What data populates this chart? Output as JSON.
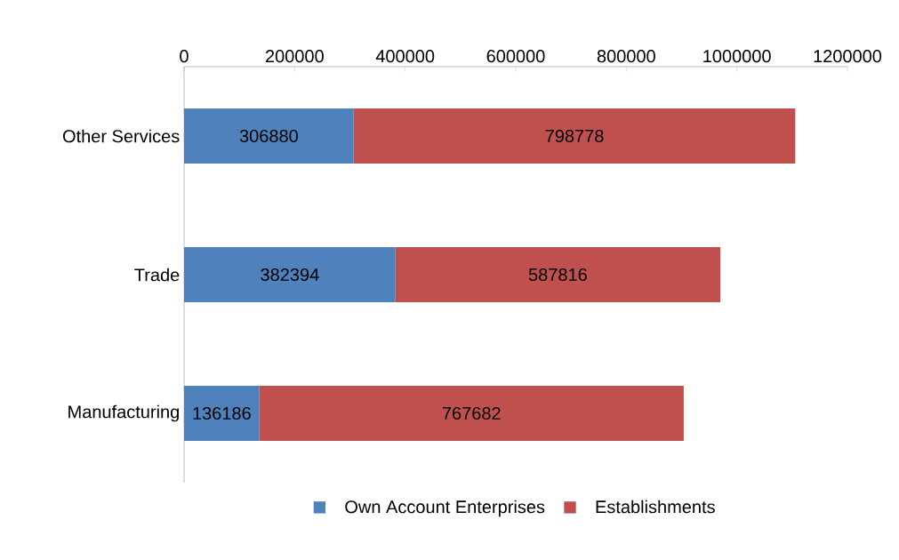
{
  "chart_data": {
    "type": "bar",
    "orientation": "horizontal",
    "stacked": true,
    "data_labels": true,
    "legend": "bottom",
    "categories": [
      "Other Services",
      "Trade",
      "Manufacturing"
    ],
    "series": [
      {
        "name": "Own Account Enterprises",
        "color": "#4f81bd",
        "values": [
          306880,
          382394,
          136186
        ]
      },
      {
        "name": "Establishments",
        "color": "#c0504d",
        "values": [
          798778,
          587816,
          767682
        ]
      }
    ],
    "xlim": [
      0,
      1200000
    ],
    "xticks": [
      0,
      200000,
      400000,
      600000,
      800000,
      1000000,
      1200000
    ]
  }
}
